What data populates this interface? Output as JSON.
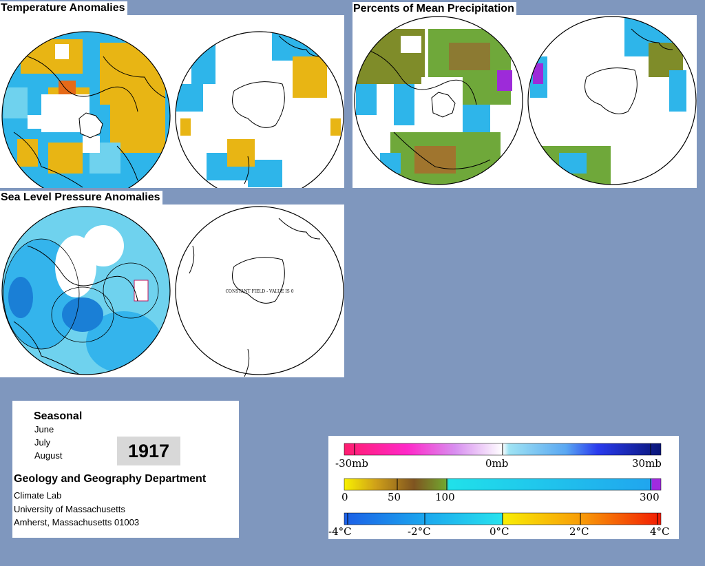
{
  "panels": {
    "temperature": {
      "title": "Temperature Anomalies"
    },
    "precipitation": {
      "title": "Percents of Mean Precipitation"
    },
    "pressure": {
      "title": "Sea Level Pressure Anomalies",
      "south_note": "CONSTANT FIELD - VALUE IS 0"
    }
  },
  "info": {
    "seasonal": "Seasonal",
    "months": [
      "June",
      "July",
      "August"
    ],
    "year": "1917",
    "department": "Geology and Geography Department",
    "lines": [
      "Climate Lab",
      "University of Massachusetts",
      "Amherst, Massachusetts 01003"
    ]
  },
  "legend": {
    "pressure": {
      "labels": [
        "-30mb",
        "0mb",
        "30mb"
      ]
    },
    "precipitation": {
      "labels": [
        "0",
        "50",
        "100",
        "300"
      ]
    },
    "temperature": {
      "labels": [
        "-4°C",
        "-2°C",
        "0°C",
        "2°C",
        "4°C"
      ]
    }
  },
  "colors": {
    "background": "#7f97be",
    "warm": "#e8b514",
    "cool": "#27b3e8",
    "dry": "#7f8c29",
    "wet": "#9d2bd9",
    "negative_pressure": "#ef0b75",
    "positive_pressure": "#0b1cb3"
  }
}
